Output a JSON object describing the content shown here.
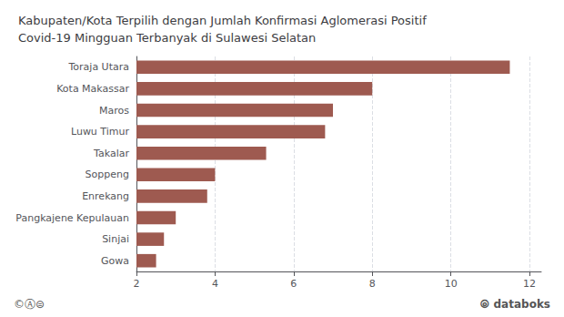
{
  "chart_data": {
    "type": "bar",
    "orientation": "horizontal",
    "title": "Kabupaten/Kota Terpilih dengan Jumlah Konfirmasi Aglomerasi Positif\nCovid-19 Mingguan Terbanyak di Sulawesi Selatan",
    "categories": [
      "Gowa",
      "Sinjai",
      "Pangkajene Kepulauan",
      "Enrekang",
      "Soppeng",
      "Takalar",
      "Luwu Timur",
      "Maros",
      "Kota Makassar",
      "Toraja Utara"
    ],
    "values": [
      2.5,
      2.7,
      3.0,
      3.8,
      4.0,
      5.3,
      6.8,
      7.0,
      8.0,
      11.5
    ],
    "color": "#9e5a50",
    "xlim": [
      2,
      12.3
    ],
    "xticks": [
      2,
      4,
      6,
      8,
      10,
      12
    ],
    "grid": true,
    "annotations": [
      "©Ⓐ⊜",
      "⦾ databoks"
    ]
  }
}
